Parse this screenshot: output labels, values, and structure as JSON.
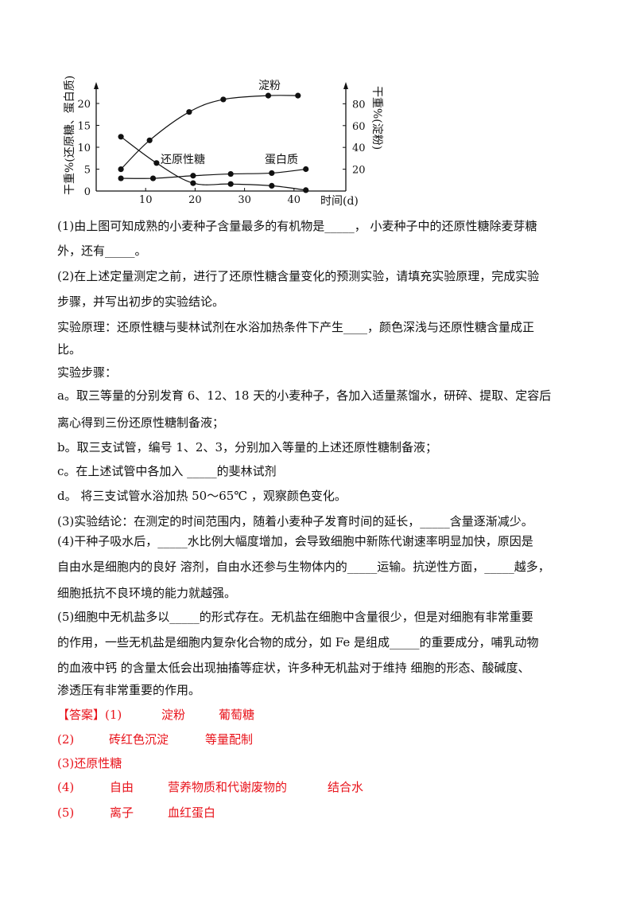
{
  "chart_data": {
    "type": "line",
    "xlabel": "时间(d)",
    "ylabel_left": "干重%(还原糖、蛋白质)",
    "ylabel_right": "干重%(淀粉)",
    "x_ticks": [
      10,
      20,
      30,
      40
    ],
    "y_left_ticks": [
      0,
      5,
      10,
      15,
      20
    ],
    "y_right_ticks": [
      20,
      40,
      60,
      80
    ],
    "xlim": [
      0,
      48
    ],
    "ylim_left": [
      0,
      24
    ],
    "ylim_right": [
      0,
      96
    ],
    "grid": false,
    "series": [
      {
        "name": "淀粉",
        "axis": "right",
        "x": [
          5,
          10.8,
          18.8,
          25.7,
          34.8,
          40.8
        ],
        "y": [
          20,
          46.5,
          72.5,
          84,
          87.5,
          87.5
        ]
      },
      {
        "name": "还原性糖",
        "axis": "left",
        "x": [
          5,
          12.2,
          19.6,
          27.2,
          35.5,
          42.4
        ],
        "y": [
          12.4,
          6.4,
          1.8,
          1.6,
          1.2,
          0.2
        ]
      },
      {
        "name": "蛋白质",
        "axis": "left",
        "x": [
          5,
          11.5,
          19.6,
          27.2,
          35.5,
          42.4
        ],
        "y": [
          2.9,
          2.9,
          3.5,
          3.9,
          4.1,
          5.0
        ]
      }
    ]
  },
  "question": {
    "lines": [
      "(1)由上图可知成熟的小麦种子含量最多的有机物是_____，  小麦种子中的还原性糖除麦芽糖",
      "外，还有_____。",
      "(2)在上述定量测定之前，进行了还原性糖含量变化的预测实验，请填充实验原理，完成实验",
      "步骤，并写出初步的实验结论。",
      "实验原理：还原性糖与斐林试剂在水浴加热条件下产生____，颜色深浅与还原性糖含量成正",
      "比。",
      "实验步骤：",
      "a。取三等量的分别发育 6、12、18 天的小麦种子，各加入适量蒸馏水，研碎、提取、定容后",
      "离心得到三份还原性糖制备液；",
      "b。取三支试管，编号 1、2、3，分别加入等量的上述还原性糖制备液；",
      "c。在上述试管中各加入 _____的斐林试剂",
      "d。 将三支试管水浴加热 50～65℃  ，观察颜色变化。",
      "(3)实验结论：在测定的时间范围内，随着小麦种子发育时间的延长，_____含量逐渐减少。",
      "(4)干种子吸水后，_____水比例大幅度增加，会导致细胞中新陈代谢速率明显加快，原因是",
      "自由水是细胞内的良好 溶剂，自由水还参与生物体内的_____运输。抗逆性方面，_____越多，",
      "细胞抵抗不良环境的能力就越强。",
      "(5)细胞中无机盐多以_____的形式存在。无机盐在细胞中含量很少，但是对细胞有非常重要",
      "的作用，一些无机盐是细胞内复杂化合物的成分，如 Fe 是组成_____的重要成分，哺乳动物",
      "的血液中钙 的含量太低会出现抽搐等症状，许多种无机盐对于维持 细胞的形态、酸碱度、",
      "渗透压有非常重要的作用。"
    ]
  },
  "answer": {
    "color": "#e8121a",
    "rows": [
      [
        "【答案】(1)",
        "淀粉",
        "葡萄糖"
      ],
      [
        "(2)",
        "砖红色沉淀",
        "等量配制"
      ],
      [
        "(3)还原性糖"
      ],
      [
        "(4)",
        "自由",
        "营养物质和代谢废物的",
        "结合水"
      ],
      [
        "(5)",
        "离子",
        "血红蛋白"
      ]
    ]
  }
}
